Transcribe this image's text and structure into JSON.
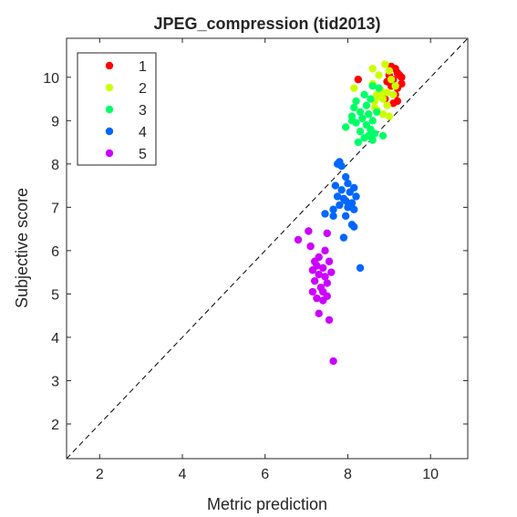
{
  "chart_data": {
    "type": "scatter",
    "title": "JPEG_compression (tid2013)",
    "xlabel": "Metric prediction",
    "ylabel": "Subjective score",
    "xlim": [
      1.2,
      10.9
    ],
    "ylim": [
      1.2,
      10.9
    ],
    "xticks": [
      2,
      4,
      6,
      8,
      10
    ],
    "yticks": [
      2,
      3,
      4,
      5,
      6,
      7,
      8,
      9,
      10
    ],
    "diagonal": "dashed y = x reference line",
    "legend_position": "top-left",
    "grid": false,
    "series": [
      {
        "name": "1",
        "color": "#ff0000",
        "points": [
          [
            9.05,
            10.25
          ],
          [
            9.15,
            10.2
          ],
          [
            9.2,
            10.1
          ],
          [
            9.25,
            10.05
          ],
          [
            9.3,
            10.0
          ],
          [
            9.0,
            10.05
          ],
          [
            9.1,
            9.95
          ],
          [
            8.95,
            9.9
          ],
          [
            9.05,
            9.8
          ],
          [
            9.2,
            9.75
          ],
          [
            9.15,
            9.6
          ],
          [
            8.25,
            9.95
          ],
          [
            9.2,
            9.45
          ],
          [
            9.1,
            9.4
          ],
          [
            8.9,
            9.5
          ],
          [
            9.3,
            9.85
          ]
        ]
      },
      {
        "name": "2",
        "color": "#ccff00",
        "points": [
          [
            8.9,
            10.3
          ],
          [
            8.6,
            10.2
          ],
          [
            9.0,
            10.15
          ],
          [
            8.75,
            10.05
          ],
          [
            9.05,
            9.95
          ],
          [
            8.6,
            9.85
          ],
          [
            9.15,
            9.8
          ],
          [
            8.15,
            9.75
          ],
          [
            8.8,
            9.7
          ],
          [
            8.95,
            9.65
          ],
          [
            9.1,
            9.6
          ],
          [
            8.7,
            9.6
          ],
          [
            8.85,
            9.5
          ],
          [
            8.65,
            9.45
          ],
          [
            8.95,
            9.35
          ],
          [
            8.7,
            9.25
          ],
          [
            8.85,
            9.15
          ],
          [
            9.0,
            9.1
          ],
          [
            8.65,
            9.3
          ],
          [
            8.8,
            9.55
          ]
        ]
      },
      {
        "name": "3",
        "color": "#00ff66",
        "points": [
          [
            8.6,
            9.8
          ],
          [
            8.75,
            9.75
          ],
          [
            8.4,
            9.6
          ],
          [
            8.55,
            9.5
          ],
          [
            8.2,
            9.45
          ],
          [
            8.45,
            9.35
          ],
          [
            8.15,
            9.3
          ],
          [
            8.3,
            9.2
          ],
          [
            8.5,
            9.15
          ],
          [
            8.7,
            9.2
          ],
          [
            8.1,
            9.1
          ],
          [
            8.35,
            9.05
          ],
          [
            8.6,
            9.0
          ],
          [
            8.2,
            8.95
          ],
          [
            8.45,
            8.9
          ],
          [
            7.95,
            8.85
          ],
          [
            8.55,
            8.8
          ],
          [
            8.3,
            8.75
          ],
          [
            8.65,
            8.7
          ],
          [
            8.85,
            8.65
          ],
          [
            8.4,
            8.6
          ],
          [
            8.6,
            8.55
          ],
          [
            8.25,
            8.5
          ],
          [
            8.5,
            8.65
          ],
          [
            8.1,
            9.0
          ]
        ]
      },
      {
        "name": "4",
        "color": "#0066ff",
        "points": [
          [
            7.8,
            8.05
          ],
          [
            7.75,
            8.0
          ],
          [
            7.85,
            7.95
          ],
          [
            7.95,
            7.7
          ],
          [
            8.0,
            7.55
          ],
          [
            7.7,
            7.5
          ],
          [
            8.15,
            7.45
          ],
          [
            7.85,
            7.4
          ],
          [
            8.05,
            7.35
          ],
          [
            7.75,
            7.25
          ],
          [
            8.2,
            7.25
          ],
          [
            7.9,
            7.2
          ],
          [
            7.95,
            7.15
          ],
          [
            8.1,
            7.1
          ],
          [
            7.8,
            7.05
          ],
          [
            8.0,
            7.0
          ],
          [
            7.65,
            6.95
          ],
          [
            8.15,
            6.95
          ],
          [
            7.45,
            6.85
          ],
          [
            7.95,
            6.8
          ],
          [
            7.65,
            6.8
          ],
          [
            8.1,
            6.6
          ],
          [
            8.15,
            6.55
          ],
          [
            7.9,
            6.3
          ],
          [
            8.3,
            5.6
          ]
        ]
      },
      {
        "name": "5",
        "color": "#cc00ff",
        "points": [
          [
            7.05,
            6.45
          ],
          [
            7.5,
            6.4
          ],
          [
            6.8,
            6.25
          ],
          [
            7.1,
            6.1
          ],
          [
            7.45,
            6.0
          ],
          [
            7.3,
            5.85
          ],
          [
            7.2,
            5.75
          ],
          [
            7.55,
            5.75
          ],
          [
            7.25,
            5.65
          ],
          [
            7.4,
            5.6
          ],
          [
            7.15,
            5.55
          ],
          [
            7.6,
            5.5
          ],
          [
            7.3,
            5.45
          ],
          [
            7.45,
            5.4
          ],
          [
            7.2,
            5.3
          ],
          [
            7.5,
            5.25
          ],
          [
            7.35,
            5.15
          ],
          [
            7.4,
            5.05
          ],
          [
            7.15,
            5.05
          ],
          [
            7.5,
            4.95
          ],
          [
            7.25,
            4.9
          ],
          [
            7.4,
            4.85
          ],
          [
            7.3,
            4.55
          ],
          [
            7.55,
            4.4
          ],
          [
            7.65,
            3.45
          ]
        ]
      }
    ]
  }
}
